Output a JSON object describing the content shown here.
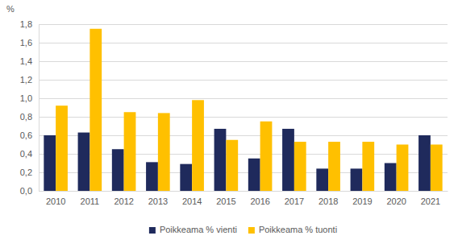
{
  "chart_data": {
    "type": "bar",
    "y_label": "%",
    "categories": [
      "2010",
      "2011",
      "2012",
      "2013",
      "2014",
      "2015",
      "2016",
      "2017",
      "2018",
      "2019",
      "2020",
      "2021"
    ],
    "series": [
      {
        "name": "Poikkeama % vienti",
        "color": "#1f2a5c",
        "values": [
          0.6,
          0.63,
          0.45,
          0.31,
          0.29,
          0.67,
          0.35,
          0.67,
          0.24,
          0.24,
          0.3,
          0.6
        ]
      },
      {
        "name": "Poikkeama % tuonti",
        "color": "#ffc000",
        "values": [
          0.92,
          1.75,
          0.85,
          0.84,
          0.98,
          0.55,
          0.75,
          0.53,
          0.53,
          0.53,
          0.5,
          0.5
        ]
      }
    ],
    "ylim": [
      0,
      1.8
    ],
    "yticks": [
      {
        "value": 0,
        "label": "0,0"
      },
      {
        "value": 0.2,
        "label": "0,2"
      },
      {
        "value": 0.4,
        "label": "0,4"
      },
      {
        "value": 0.6,
        "label": "0,6"
      },
      {
        "value": 0.8,
        "label": "0,8"
      },
      {
        "value": 1.0,
        "label": "1,0"
      },
      {
        "value": 1.2,
        "label": "1,2"
      },
      {
        "value": 1.4,
        "label": "1,4"
      },
      {
        "value": 1.6,
        "label": "1,6"
      },
      {
        "value": 1.8,
        "label": "1,8"
      }
    ],
    "grid": true,
    "legend": "bottom"
  }
}
